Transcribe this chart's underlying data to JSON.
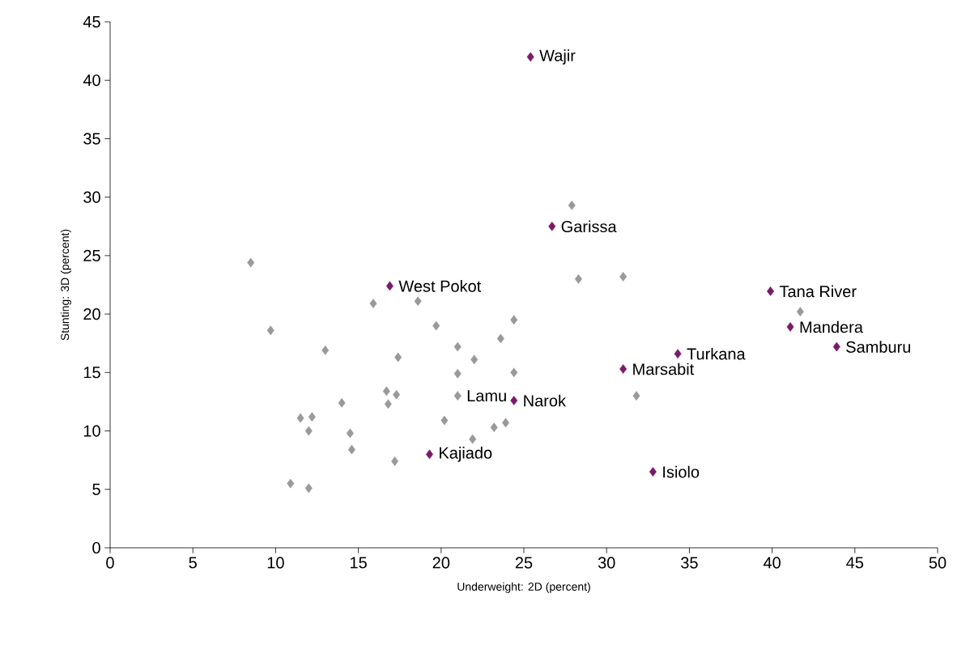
{
  "chart_data": {
    "type": "scatter",
    "xlabel": "Underweight: 2D (percent)",
    "ylabel": "Stunting: 3D (percent)",
    "xlim": [
      0,
      50
    ],
    "ylim": [
      0,
      45
    ],
    "xticks": [
      0,
      5,
      10,
      15,
      20,
      25,
      30,
      35,
      40,
      45,
      50
    ],
    "yticks": [
      0,
      5,
      10,
      15,
      20,
      25,
      30,
      35,
      40,
      45
    ],
    "marker": "diamond",
    "series": [
      {
        "color": "#999999",
        "x": [
          8.5,
          9.7,
          13.0,
          11.5,
          12.2,
          12.0,
          14.0,
          14.5,
          14.6,
          10.9,
          12.0,
          15.9,
          16.7,
          16.8,
          17.3,
          17.4,
          17.2,
          18.6,
          19.7,
          20.2,
          21.0,
          21.0,
          21.0,
          22.0,
          21.9,
          23.6,
          24.4,
          24.4,
          23.2,
          23.9,
          27.9,
          28.3,
          31.0,
          31.8,
          41.7
        ],
        "values": [
          24.4,
          18.6,
          16.9,
          11.1,
          11.2,
          10.0,
          12.4,
          9.8,
          8.4,
          5.5,
          5.1,
          20.9,
          13.4,
          12.3,
          13.1,
          16.3,
          7.4,
          21.1,
          19.0,
          10.9,
          17.2,
          14.9,
          13.0,
          16.1,
          9.3,
          17.9,
          19.5,
          15.0,
          10.3,
          10.7,
          29.3,
          23.0,
          23.2,
          13.0,
          20.2
        ]
      },
      {
        "color": "#7b1a6b",
        "x": [
          25.4,
          26.7,
          16.9,
          39.9,
          41.1,
          43.9,
          34.3,
          31.0,
          24.4,
          19.3,
          32.8
        ],
        "values": [
          42.0,
          27.5,
          22.4,
          21.95,
          18.9,
          17.2,
          16.6,
          15.3,
          12.6,
          8.0,
          6.5
        ]
      }
    ],
    "annotations": [
      {
        "text": "Wajir",
        "x": 25.4,
        "y": 42.0
      },
      {
        "text": "Garissa",
        "x": 26.7,
        "y": 27.5
      },
      {
        "text": "West Pokot",
        "x": 16.9,
        "y": 22.4
      },
      {
        "text": "Tana River",
        "x": 39.9,
        "y": 21.95
      },
      {
        "text": "Mandera",
        "x": 41.1,
        "y": 18.9
      },
      {
        "text": "Samburu",
        "x": 43.9,
        "y": 17.2
      },
      {
        "text": "Turkana",
        "x": 34.3,
        "y": 16.6
      },
      {
        "text": "Marsabit",
        "x": 31.0,
        "y": 15.3
      },
      {
        "text": "Narok",
        "x": 24.4,
        "y": 12.6
      },
      {
        "text": "Kajiado",
        "x": 19.3,
        "y": 8.0
      },
      {
        "text": "Isiolo",
        "x": 32.8,
        "y": 6.5
      },
      {
        "text": "Lamu",
        "x": 21.0,
        "y": 13.0
      }
    ]
  }
}
